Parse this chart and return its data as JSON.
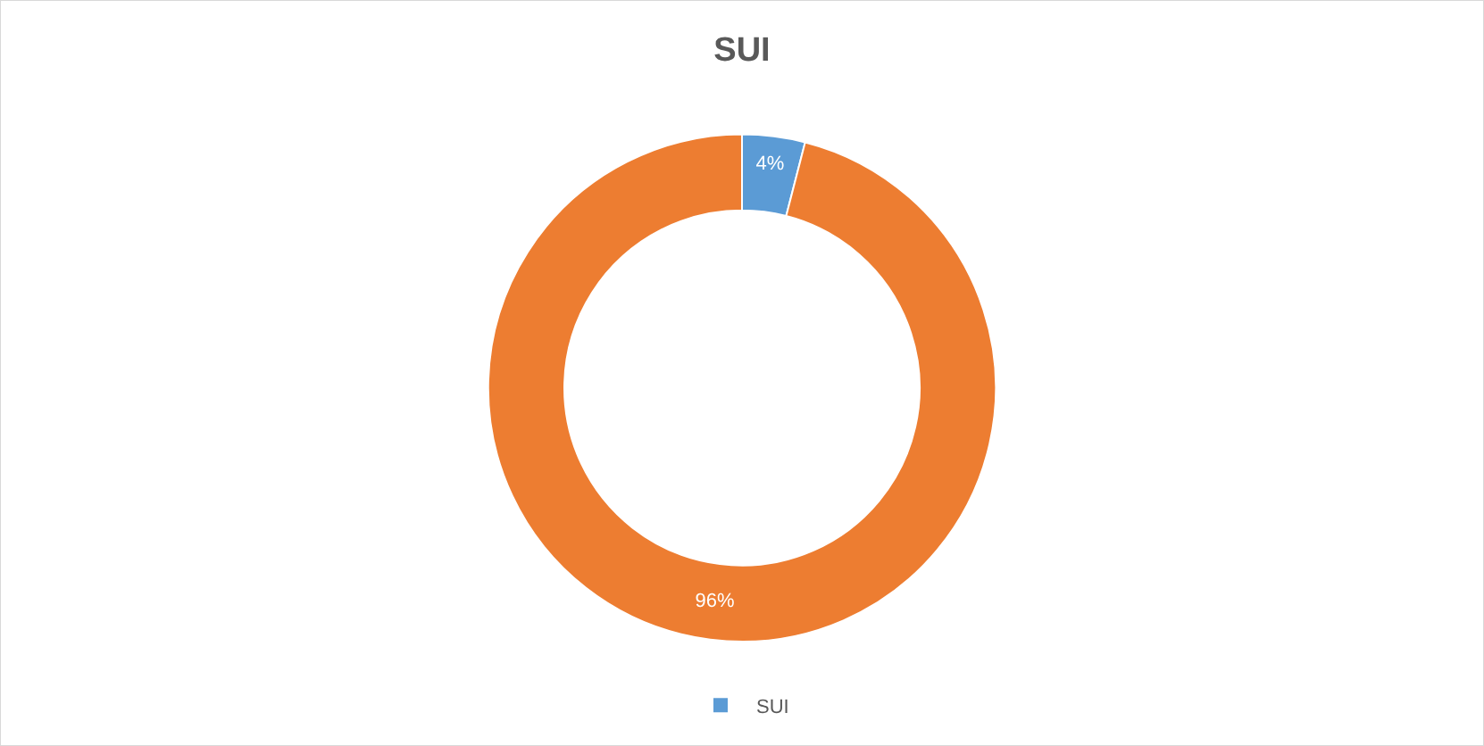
{
  "chart_data": {
    "type": "donut",
    "title": "SUI",
    "categories": [
      "SUI",
      null
    ],
    "values": [
      4,
      96
    ],
    "colors": [
      "#5b9bd5",
      "#ed7d31"
    ],
    "value_labels": [
      "4%",
      "96%"
    ],
    "legend": "bottom"
  }
}
